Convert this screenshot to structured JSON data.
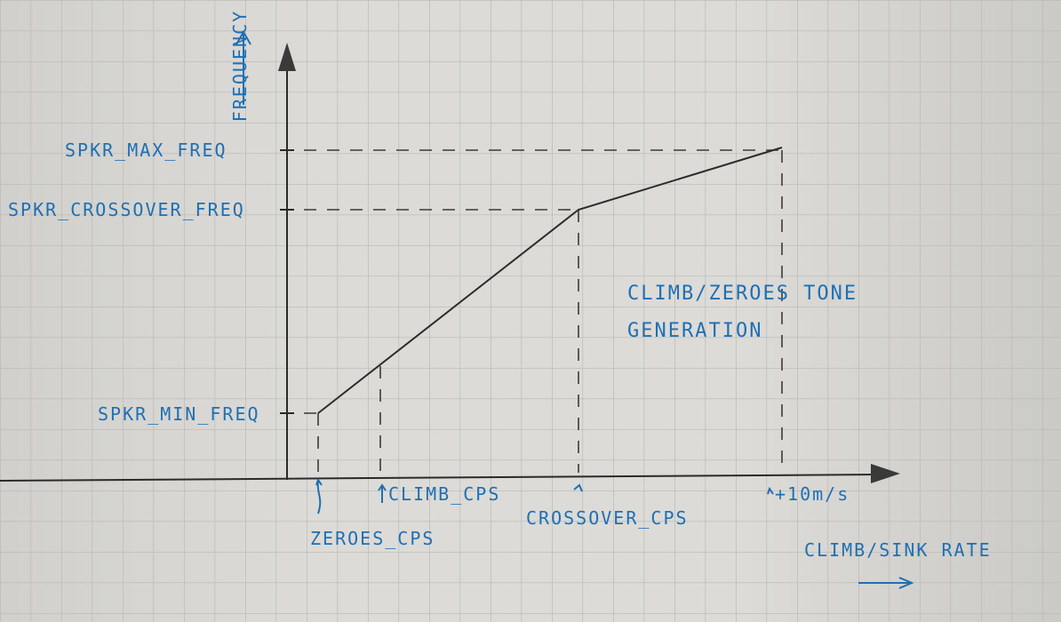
{
  "axes": {
    "y_label": "FREQUENCY",
    "x_label": "CLIMB/SINK RATE"
  },
  "y_labels": {
    "max": "SPKR_MAX_FREQ",
    "crossover": "SPKR_CROSSOVER_FREQ",
    "min": "SPKR_MIN_FREQ"
  },
  "x_labels": {
    "zeroes": "ZEROES_CPS",
    "climb": "CLIMB_CPS",
    "crossover": "CROSSOVER_CPS",
    "max": "+10m/s"
  },
  "annotation": {
    "line1": "CLIMB/ZEROES TONE",
    "line2": "GENERATION"
  },
  "colors": {
    "ink_blue": "#1f6fb4",
    "ink_black": "#2c2c2c",
    "paper": "#dcdbd7",
    "grid": "#b9b8b4"
  }
}
